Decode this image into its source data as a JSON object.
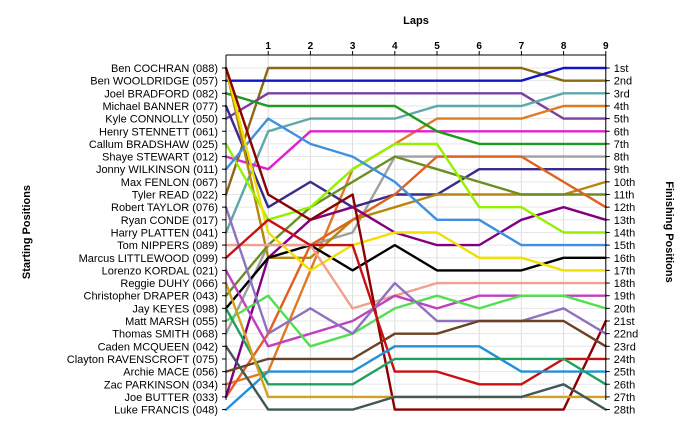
{
  "chart_data": {
    "type": "line",
    "xlabel": "Laps",
    "ylabel_left": "Starting Positions",
    "ylabel_right": "Finishing Positions",
    "x": [
      0,
      1,
      2,
      3,
      4,
      5,
      6,
      7,
      8,
      9
    ],
    "x_tick_labels": [
      "1",
      "2",
      "3",
      "4",
      "5",
      "6",
      "7",
      "8",
      "9"
    ],
    "drivers": [
      "Ben COCHRAN (088)",
      "Ben WOOLDRIDGE (057)",
      "Joel BRADFORD (082)",
      "Michael BANNER (077)",
      "Kyle CONNOLLY (050)",
      "Henry STENNETT (061)",
      "Callum BRADSHAW (025)",
      "Shaye STEWART (012)",
      "Jonny WILKINSON (011)",
      "Max FENLON (067)",
      "Tyler READ (022)",
      "Robert TAYLOR (076)",
      "Ryan CONDE (017)",
      "Harry PLATTEN (041)",
      "Tom NIPPERS (089)",
      "Marcus LITTLEWOOD (099)",
      "Lorenzo KORDAL (021)",
      "Reggie DUHY (066)",
      "Christopher DRAPER (043)",
      "Jay KEYES (098)",
      "Matt MARSH (055)",
      "Thomas SMITH (068)",
      "Caden MCQUEEN (042)",
      "Clayton RAVENSCROFT (075)",
      "Archie MACE (056)",
      "Zac PARKINSON (034)",
      "Joe BUTTER (033)",
      "Luke FRANCIS (048)"
    ],
    "finishing_labels": [
      "1st",
      "2nd",
      "3rd",
      "4th",
      "5th",
      "6th",
      "7th",
      "8th",
      "9th",
      "10th",
      "11th",
      "12th",
      "13th",
      "14th",
      "15th",
      "16th",
      "17th",
      "18th",
      "19th",
      "20th",
      "21st",
      "22nd",
      "23rd",
      "24th",
      "25th",
      "26th",
      "27th",
      "28th"
    ],
    "y_range": [
      1,
      28
    ],
    "series": [
      {
        "color": "#8B6914",
        "values": [
          11,
          1,
          1,
          1,
          1,
          1,
          1,
          1,
          2,
          2
        ]
      },
      {
        "color": "#1515C8",
        "values": [
          2,
          2,
          2,
          2,
          2,
          2,
          2,
          2,
          1,
          1
        ]
      },
      {
        "color": "#7A3FA0",
        "values": [
          5,
          3,
          3,
          3,
          3,
          3,
          3,
          3,
          5,
          5
        ]
      },
      {
        "color": "#5FA8A8",
        "values": [
          14,
          6,
          5,
          5,
          5,
          4,
          4,
          4,
          3,
          3
        ]
      },
      {
        "color": "#E07A20",
        "values": [
          26,
          25,
          17,
          9,
          7,
          5,
          5,
          5,
          4,
          4
        ]
      },
      {
        "color": "#E020D0",
        "values": [
          8,
          9,
          6,
          6,
          6,
          6,
          6,
          6,
          6,
          6
        ]
      },
      {
        "color": "#1E9A1E",
        "values": [
          3,
          4,
          4,
          4,
          4,
          6,
          7,
          7,
          7,
          7
        ]
      },
      {
        "color": "#A0A0A0",
        "values": [
          22,
          15,
          15,
          14,
          8,
          8,
          8,
          8,
          8,
          8
        ]
      },
      {
        "color": "#3A2A8A",
        "values": [
          4,
          12,
          10,
          12,
          11,
          11,
          9,
          9,
          9,
          9
        ]
      },
      {
        "color": "#B8860B",
        "values": [
          1,
          16,
          16,
          13,
          12,
          11,
          11,
          11,
          11,
          10
        ]
      },
      {
        "color": "#6B8E23",
        "values": [
          19,
          15,
          12,
          10,
          8,
          9,
          10,
          11,
          11,
          11
        ]
      },
      {
        "color": "#E06020",
        "values": [
          27,
          22,
          15,
          13,
          11,
          8,
          8,
          8,
          10,
          12
        ]
      },
      {
        "color": "#800080",
        "values": [
          27,
          16,
          13,
          12,
          14,
          15,
          15,
          13,
          12,
          13
        ]
      },
      {
        "color": "#96F000",
        "values": [
          7,
          13,
          12,
          9,
          7,
          7,
          12,
          12,
          14,
          14
        ]
      },
      {
        "color": "#4090E0",
        "values": [
          9,
          5,
          7,
          8,
          10,
          13,
          13,
          15,
          15,
          15
        ]
      },
      {
        "color": "#000000",
        "values": [
          20,
          16,
          15,
          17,
          15,
          17,
          17,
          17,
          16,
          16
        ]
      },
      {
        "color": "#F0E000",
        "values": [
          1,
          14,
          17,
          15,
          14,
          14,
          16,
          16,
          17,
          17
        ]
      },
      {
        "color": "#F0A090",
        "values": [
          15,
          15,
          15,
          20,
          19,
          18,
          18,
          18,
          18,
          18
        ]
      },
      {
        "color": "#C040C0",
        "values": [
          17,
          23,
          22,
          21,
          19,
          20,
          19,
          19,
          19,
          19
        ]
      },
      {
        "color": "#50E050",
        "values": [
          21,
          19,
          23,
          22,
          20,
          19,
          20,
          19,
          19,
          20
        ]
      },
      {
        "color": "#8B0000",
        "values": [
          1,
          11,
          13,
          11,
          28,
          28,
          28,
          28,
          28,
          21
        ]
      },
      {
        "color": "#9070C0",
        "values": [
          12,
          22,
          20,
          22,
          18,
          21,
          21,
          21,
          20,
          22
        ]
      },
      {
        "color": "#6B4226",
        "values": [
          25,
          24,
          24,
          24,
          22,
          22,
          21,
          21,
          21,
          23
        ]
      },
      {
        "color": "#C81010",
        "values": [
          16,
          13,
          15,
          15,
          25,
          25,
          26,
          26,
          24,
          24
        ]
      },
      {
        "color": "#2090D8",
        "values": [
          28,
          25,
          25,
          25,
          23,
          23,
          23,
          25,
          25,
          25
        ]
      },
      {
        "color": "#20A060",
        "values": [
          20,
          26,
          26,
          26,
          24,
          24,
          24,
          24,
          24,
          26
        ]
      },
      {
        "color": "#D4A020",
        "values": [
          18,
          27,
          27,
          27,
          27,
          27,
          27,
          27,
          27,
          27
        ]
      },
      {
        "color": "#405858",
        "values": [
          23,
          28,
          28,
          28,
          27,
          27,
          27,
          27,
          26,
          28
        ]
      }
    ],
    "grid": true
  }
}
